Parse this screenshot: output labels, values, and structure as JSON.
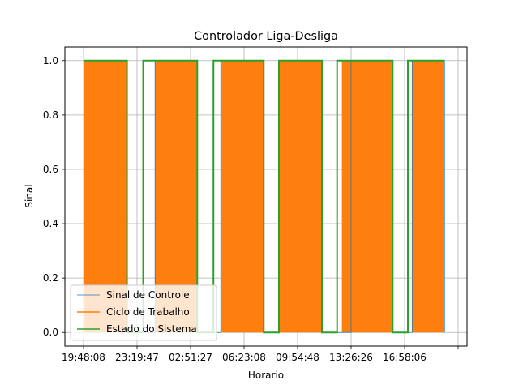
{
  "chart_data": {
    "type": "line",
    "title": "Controlador Liga-Desliga",
    "xlabel": "Horario",
    "ylabel": "Sinal",
    "ylim": [
      -0.05,
      1.05
    ],
    "yticks": [
      0.0,
      0.2,
      0.4,
      0.6,
      0.8,
      1.0
    ],
    "ytick_labels": [
      "0.0",
      "0.2",
      "0.4",
      "0.6",
      "0.8",
      "1.0"
    ],
    "xticks": [
      "19:48:08",
      "23:19:47",
      "02:51:27",
      "06:23:08",
      "09:54:48",
      "13:26:26",
      "16:58:06",
      ""
    ],
    "grid": true,
    "legend_position": "lower-left",
    "series": [
      {
        "name": "Sinal de Controle",
        "color": "#1f77b4",
        "style": "thin line",
        "on_intervals": [
          [
            "19:48:08",
            "22:40:00"
          ],
          [
            "00:31:00",
            "03:18:00"
          ],
          [
            "04:51:00",
            "07:41:00"
          ],
          [
            "08:41:00",
            "11:31:00"
          ],
          [
            "13:26:26",
            "16:11:00"
          ],
          [
            "17:28:00",
            "19:36:00"
          ]
        ]
      },
      {
        "name": "Ciclo de Trabalho",
        "color": "#ff7f0e",
        "style": "dense PWM switching filling the band 0 to 1",
        "on_intervals": [
          [
            "19:48:08",
            "22:40:00"
          ],
          [
            "00:31:00",
            "03:18:00"
          ],
          [
            "04:51:00",
            "07:41:00"
          ],
          [
            "08:41:00",
            "11:31:00"
          ],
          [
            "12:50:00",
            "16:11:00"
          ],
          [
            "17:28:00",
            "19:36:00"
          ]
        ]
      },
      {
        "name": "Estado do Sistema",
        "color": "#2ca02c",
        "style": "step line",
        "x": [
          "19:48:08",
          "22:40:00",
          "22:40:00",
          "23:44:00",
          "23:44:00",
          "03:18:00",
          "03:18:00",
          "04:22:00",
          "04:22:00",
          "07:41:00",
          "07:41:00",
          "08:41:00",
          "08:41:00",
          "11:31:00",
          "11:31:00",
          "12:31:00",
          "12:31:00",
          "16:11:00",
          "16:11:00",
          "17:11:00",
          "17:11:00",
          "19:36:00"
        ],
        "y": [
          1,
          1,
          0,
          0,
          1,
          1,
          0,
          0,
          1,
          1,
          0,
          0,
          1,
          1,
          0,
          0,
          1,
          1,
          0,
          0,
          1,
          1
        ]
      }
    ]
  }
}
